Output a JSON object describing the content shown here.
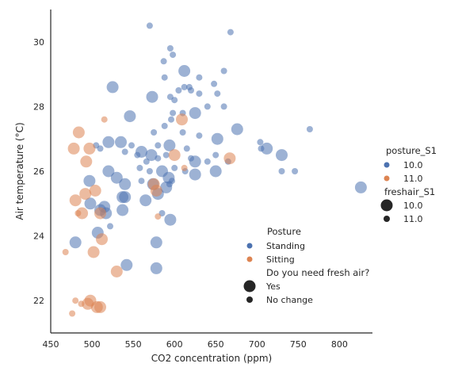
{
  "chart_data": {
    "type": "scatter",
    "title": "",
    "xlabel": "CO2 concentration (ppm)",
    "ylabel": "Air temperature (°C)",
    "xlim": [
      450,
      840
    ],
    "ylim": [
      21.0,
      31.0
    ],
    "xticks": [
      450,
      500,
      550,
      600,
      650,
      700,
      750,
      800
    ],
    "yticks": [
      22,
      24,
      26,
      28,
      30
    ],
    "grid": false,
    "hue_colors": {
      "standing": "#4c72b0",
      "sitting": "#dd8452"
    },
    "point_alpha": 0.55,
    "points_note": "each point: [CO2 ppm, air temperature °C, posture (standing|sitting), fresh air (yes = large marker | no = small marker)]",
    "points": [
      [
        570,
        30.5,
        "standing",
        "no"
      ],
      [
        668,
        30.3,
        "standing",
        "no"
      ],
      [
        595,
        29.8,
        "standing",
        "no"
      ],
      [
        587,
        29.4,
        "standing",
        "no"
      ],
      [
        598,
        29.6,
        "standing",
        "no"
      ],
      [
        612,
        29.1,
        "standing",
        "yes"
      ],
      [
        630,
        28.9,
        "standing",
        "no"
      ],
      [
        660,
        29.1,
        "standing",
        "no"
      ],
      [
        588,
        28.9,
        "standing",
        "no"
      ],
      [
        612,
        28.6,
        "standing",
        "no"
      ],
      [
        618,
        28.6,
        "standing",
        "no"
      ],
      [
        648,
        28.7,
        "standing",
        "no"
      ],
      [
        620,
        28.5,
        "standing",
        "no"
      ],
      [
        605,
        28.5,
        "standing",
        "no"
      ],
      [
        525,
        28.6,
        "standing",
        "yes"
      ],
      [
        573,
        28.3,
        "standing",
        "yes"
      ],
      [
        595,
        28.3,
        "standing",
        "no"
      ],
      [
        600,
        28.2,
        "standing",
        "no"
      ],
      [
        630,
        28.4,
        "standing",
        "no"
      ],
      [
        652,
        28.4,
        "standing",
        "no"
      ],
      [
        640,
        28.0,
        "standing",
        "no"
      ],
      [
        610,
        27.8,
        "standing",
        "no"
      ],
      [
        598,
        27.8,
        "standing",
        "no"
      ],
      [
        625,
        27.8,
        "standing",
        "yes"
      ],
      [
        660,
        28.0,
        "standing",
        "no"
      ],
      [
        546,
        27.7,
        "standing",
        "yes"
      ],
      [
        575,
        27.2,
        "standing",
        "no"
      ],
      [
        588,
        27.4,
        "standing",
        "no"
      ],
      [
        596,
        27.6,
        "standing",
        "no"
      ],
      [
        610,
        27.2,
        "standing",
        "no"
      ],
      [
        630,
        27.1,
        "standing",
        "no"
      ],
      [
        676,
        27.3,
        "standing",
        "yes"
      ],
      [
        764,
        27.3,
        "standing",
        "no"
      ],
      [
        520,
        26.9,
        "standing",
        "yes"
      ],
      [
        535,
        26.9,
        "standing",
        "yes"
      ],
      [
        548,
        26.8,
        "standing",
        "no"
      ],
      [
        560,
        26.6,
        "standing",
        "yes"
      ],
      [
        572,
        26.5,
        "standing",
        "yes"
      ],
      [
        580,
        26.8,
        "standing",
        "no"
      ],
      [
        594,
        26.8,
        "standing",
        "yes"
      ],
      [
        615,
        26.7,
        "standing",
        "no"
      ],
      [
        652,
        27.0,
        "standing",
        "yes"
      ],
      [
        650,
        26.5,
        "standing",
        "no"
      ],
      [
        704,
        26.9,
        "standing",
        "no"
      ],
      [
        712,
        26.7,
        "standing",
        "yes"
      ],
      [
        730,
        26.5,
        "standing",
        "yes"
      ],
      [
        705,
        26.7,
        "standing",
        "no"
      ],
      [
        505,
        26.8,
        "standing",
        "no"
      ],
      [
        540,
        26.6,
        "standing",
        "no"
      ],
      [
        555,
        26.5,
        "standing",
        "no"
      ],
      [
        566,
        26.3,
        "standing",
        "no"
      ],
      [
        580,
        26.4,
        "standing",
        "no"
      ],
      [
        590,
        26.5,
        "standing",
        "no"
      ],
      [
        620,
        26.4,
        "standing",
        "no"
      ],
      [
        640,
        26.3,
        "standing",
        "no"
      ],
      [
        558,
        26.1,
        "standing",
        "no"
      ],
      [
        570,
        26.0,
        "standing",
        "no"
      ],
      [
        585,
        26.0,
        "standing",
        "yes"
      ],
      [
        597,
        25.7,
        "standing",
        "no"
      ],
      [
        613,
        26.0,
        "standing",
        "no"
      ],
      [
        600,
        26.1,
        "standing",
        "no"
      ],
      [
        625,
        26.3,
        "standing",
        "yes"
      ],
      [
        665,
        26.3,
        "standing",
        "no"
      ],
      [
        730,
        26.0,
        "standing",
        "no"
      ],
      [
        746,
        26.0,
        "standing",
        "no"
      ],
      [
        520,
        26.0,
        "standing",
        "yes"
      ],
      [
        530,
        25.8,
        "standing",
        "yes"
      ],
      [
        540,
        25.6,
        "standing",
        "yes"
      ],
      [
        497,
        25.7,
        "standing",
        "yes"
      ],
      [
        560,
        25.7,
        "standing",
        "no"
      ],
      [
        590,
        25.5,
        "standing",
        "yes"
      ],
      [
        593,
        25.8,
        "standing",
        "yes"
      ],
      [
        625,
        25.9,
        "standing",
        "yes"
      ],
      [
        650,
        26.0,
        "standing",
        "yes"
      ],
      [
        574,
        25.6,
        "standing",
        "yes"
      ],
      [
        580,
        25.3,
        "standing",
        "yes"
      ],
      [
        594,
        25.6,
        "standing",
        "no"
      ],
      [
        537,
        25.2,
        "standing",
        "yes"
      ],
      [
        540,
        25.2,
        "standing",
        "yes"
      ],
      [
        498,
        25.0,
        "standing",
        "yes"
      ],
      [
        515,
        24.9,
        "standing",
        "yes"
      ],
      [
        510,
        24.8,
        "standing",
        "yes"
      ],
      [
        565,
        25.1,
        "standing",
        "yes"
      ],
      [
        537,
        24.8,
        "standing",
        "yes"
      ],
      [
        585,
        24.7,
        "standing",
        "no"
      ],
      [
        595,
        24.5,
        "standing",
        "yes"
      ],
      [
        517,
        24.7,
        "standing",
        "yes"
      ],
      [
        522,
        24.3,
        "standing",
        "no"
      ],
      [
        507,
        24.1,
        "standing",
        "yes"
      ],
      [
        480,
        23.8,
        "standing",
        "yes"
      ],
      [
        578,
        23.8,
        "standing",
        "yes"
      ],
      [
        542,
        23.1,
        "standing",
        "yes"
      ],
      [
        578,
        23.0,
        "standing",
        "yes"
      ],
      [
        826,
        25.5,
        "standing",
        "yes"
      ],
      [
        510,
        26.7,
        "standing",
        "no"
      ],
      [
        484,
        27.2,
        "sitting",
        "yes"
      ],
      [
        515,
        27.6,
        "sitting",
        "no"
      ],
      [
        478,
        26.7,
        "sitting",
        "yes"
      ],
      [
        497,
        26.7,
        "sitting",
        "yes"
      ],
      [
        493,
        26.3,
        "sitting",
        "yes"
      ],
      [
        609,
        27.6,
        "sitting",
        "yes"
      ],
      [
        600,
        26.5,
        "sitting",
        "yes"
      ],
      [
        667,
        26.4,
        "sitting",
        "yes"
      ],
      [
        612,
        26.1,
        "sitting",
        "no"
      ],
      [
        480,
        25.1,
        "sitting",
        "yes"
      ],
      [
        492,
        25.3,
        "sitting",
        "yes"
      ],
      [
        504,
        25.4,
        "sitting",
        "yes"
      ],
      [
        575,
        25.6,
        "sitting",
        "yes"
      ],
      [
        578,
        25.4,
        "sitting",
        "yes"
      ],
      [
        488,
        24.7,
        "sitting",
        "yes"
      ],
      [
        483,
        24.7,
        "sitting",
        "no"
      ],
      [
        510,
        24.7,
        "sitting",
        "yes"
      ],
      [
        580,
        24.6,
        "sitting",
        "no"
      ],
      [
        512,
        23.9,
        "sitting",
        "yes"
      ],
      [
        502,
        23.5,
        "sitting",
        "yes"
      ],
      [
        468,
        23.5,
        "sitting",
        "no"
      ],
      [
        530,
        22.9,
        "sitting",
        "yes"
      ],
      [
        498,
        22.0,
        "sitting",
        "yes"
      ],
      [
        480,
        22.0,
        "sitting",
        "no"
      ],
      [
        487,
        21.9,
        "sitting",
        "no"
      ],
      [
        495,
        21.9,
        "sitting",
        "yes"
      ],
      [
        506,
        21.8,
        "sitting",
        "yes"
      ],
      [
        510,
        21.8,
        "sitting",
        "yes"
      ],
      [
        476,
        21.6,
        "sitting",
        "no"
      ]
    ],
    "legend_inside": {
      "placement": "lower-center",
      "hue_title": "Posture",
      "hue_items": [
        {
          "label": "Standing",
          "color": "#4c72b0"
        },
        {
          "label": "Sitting",
          "color": "#dd8452"
        }
      ],
      "size_title": "Do you need fresh air?",
      "size_items": [
        {
          "label": "Yes",
          "marker": "large"
        },
        {
          "label": "No change",
          "marker": "small"
        }
      ]
    },
    "legend_outside": {
      "placement": "right",
      "hue_title": "posture_S1",
      "hue_items": [
        {
          "label": "10.0",
          "color": "#4c72b0"
        },
        {
          "label": "11.0",
          "color": "#dd8452"
        }
      ],
      "size_title": "freshair_S1",
      "size_items": [
        {
          "label": "10.0",
          "marker": "large"
        },
        {
          "label": "11.0",
          "marker": "small"
        }
      ]
    }
  }
}
